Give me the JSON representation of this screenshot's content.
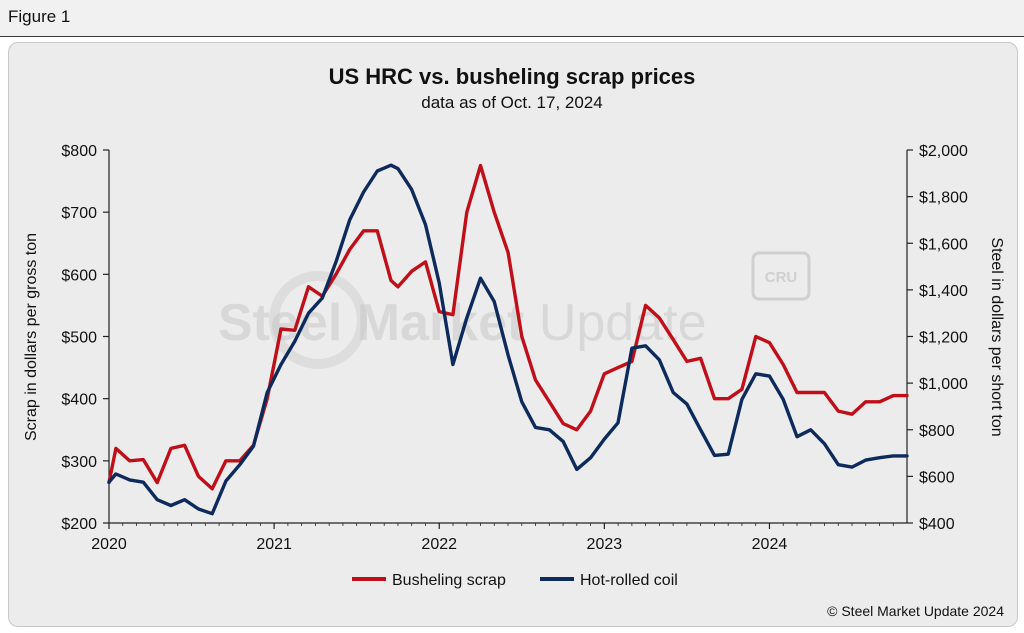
{
  "figure_label": "Figure 1",
  "watermark": {
    "brand": "Steel Market Update",
    "brand_bold": "Steel Market",
    "brand_light": "Update",
    "badge": "CRU"
  },
  "copyright": "© Steel Market Update 2024",
  "colors": {
    "scrap": "#c00f19",
    "hrc": "#0d2a5c",
    "axis": "#222222"
  },
  "chart_data": {
    "type": "line",
    "title": "US HRC vs. busheling scrap prices",
    "subtitle": "data as of Oct. 17, 2024",
    "ylabel_left": "Scrap in dollars per gross ton",
    "ylabel_right": "Steel in dollars per short ton",
    "x_tick_labels": [
      "2020",
      "2021",
      "2022",
      "2023",
      "2024"
    ],
    "x_range": [
      2020.0,
      2024.833
    ],
    "y_left": {
      "range": [
        200,
        800
      ],
      "tick_values": [
        200,
        300,
        400,
        500,
        600,
        700,
        800
      ],
      "tick_labels": [
        "$200",
        "$300",
        "$400",
        "$500",
        "$600",
        "$700",
        "$800"
      ]
    },
    "y_right": {
      "range": [
        400,
        2000
      ],
      "tick_values": [
        400,
        600,
        800,
        1000,
        1200,
        1400,
        1600,
        1800,
        2000
      ],
      "tick_labels": [
        "$400",
        "$600",
        "$800",
        "$1,000",
        "$1,200",
        "$1,400",
        "$1,600",
        "$1,800",
        "$2,000"
      ]
    },
    "legend_position": "bottom-center",
    "series": [
      {
        "name": "Busheling scrap",
        "axis": "left",
        "color": "#c00f19",
        "x": [
          2020.0,
          2020.042,
          2020.125,
          2020.208,
          2020.292,
          2020.375,
          2020.458,
          2020.542,
          2020.625,
          2020.708,
          2020.792,
          2020.875,
          2020.958,
          2021.042,
          2021.125,
          2021.208,
          2021.292,
          2021.375,
          2021.458,
          2021.542,
          2021.625,
          2021.708,
          2021.75,
          2021.833,
          2021.917,
          2022.0,
          2022.083,
          2022.167,
          2022.25,
          2022.333,
          2022.417,
          2022.5,
          2022.583,
          2022.667,
          2022.75,
          2022.833,
          2022.917,
          2023.0,
          2023.083,
          2023.167,
          2023.25,
          2023.333,
          2023.417,
          2023.5,
          2023.583,
          2023.667,
          2023.75,
          2023.833,
          2023.917,
          2024.0,
          2024.083,
          2024.167,
          2024.25,
          2024.333,
          2024.417,
          2024.5,
          2024.583,
          2024.667,
          2024.75,
          2024.833
        ],
        "values": [
          265,
          320,
          300,
          302,
          265,
          320,
          325,
          275,
          255,
          300,
          300,
          325,
          400,
          512,
          510,
          580,
          565,
          600,
          640,
          670,
          670,
          590,
          580,
          605,
          620,
          540,
          535,
          700,
          775,
          700,
          635,
          500,
          430,
          395,
          360,
          350,
          380,
          440,
          450,
          460,
          550,
          530,
          495,
          460,
          465,
          400,
          400,
          415,
          500,
          490,
          455,
          410,
          410,
          410,
          380,
          375,
          395,
          395,
          405,
          405
        ]
      },
      {
        "name": "Hot-rolled coil",
        "axis": "right",
        "color": "#0d2a5c",
        "x": [
          2020.0,
          2020.042,
          2020.125,
          2020.208,
          2020.292,
          2020.375,
          2020.458,
          2020.542,
          2020.625,
          2020.708,
          2020.792,
          2020.875,
          2020.958,
          2021.042,
          2021.125,
          2021.208,
          2021.292,
          2021.375,
          2021.458,
          2021.542,
          2021.625,
          2021.708,
          2021.75,
          2021.833,
          2021.917,
          2022.0,
          2022.083,
          2022.167,
          2022.25,
          2022.333,
          2022.417,
          2022.5,
          2022.583,
          2022.667,
          2022.75,
          2022.833,
          2022.917,
          2023.0,
          2023.083,
          2023.167,
          2023.25,
          2023.333,
          2023.417,
          2023.5,
          2023.583,
          2023.667,
          2023.75,
          2023.833,
          2023.917,
          2024.0,
          2024.083,
          2024.167,
          2024.25,
          2024.333,
          2024.417,
          2024.5,
          2024.583,
          2024.667,
          2024.75,
          2024.833
        ],
        "values": [
          575,
          610,
          585,
          575,
          500,
          475,
          500,
          460,
          440,
          580,
          650,
          730,
          960,
          1080,
          1180,
          1300,
          1365,
          1520,
          1700,
          1820,
          1910,
          1935,
          1920,
          1830,
          1680,
          1430,
          1080,
          1280,
          1450,
          1350,
          1120,
          920,
          810,
          800,
          750,
          630,
          680,
          760,
          830,
          1150,
          1160,
          1100,
          960,
          910,
          800,
          690,
          695,
          930,
          1040,
          1030,
          930,
          770,
          800,
          740,
          650,
          640,
          670,
          680,
          688,
          688
        ]
      }
    ]
  }
}
